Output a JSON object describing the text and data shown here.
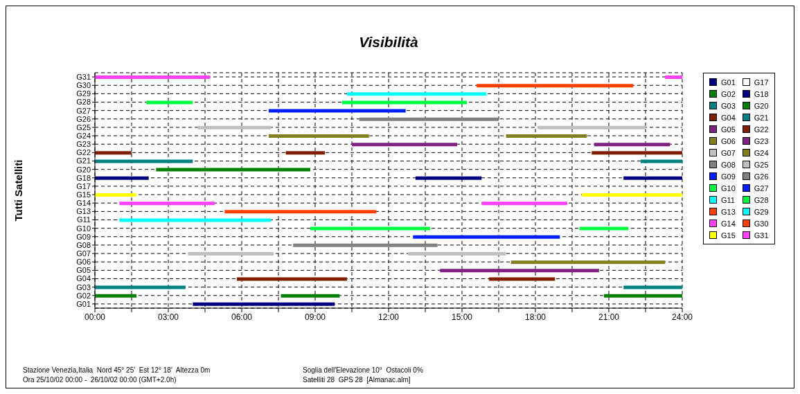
{
  "chart_data": {
    "type": "bar",
    "orientation": "horizontal",
    "title": "Visibilità",
    "ylabel": "Tutti Satelliti",
    "categories": [
      "G31",
      "G30",
      "G29",
      "G28",
      "G27",
      "G26",
      "G25",
      "G24",
      "G23",
      "G22",
      "G21",
      "G20",
      "G18",
      "G17",
      "G15",
      "G14",
      "G13",
      "G11",
      "G10",
      "G09",
      "G08",
      "G07",
      "G06",
      "G05",
      "G04",
      "G03",
      "G02",
      "G01"
    ],
    "series": [
      {
        "name": "G01",
        "color": "#000080",
        "x": [
          "G01"
        ],
        "base": [
          4.0
        ],
        "values": [
          5.8
        ]
      },
      {
        "name": "G02",
        "color": "#008000",
        "x": [
          "G02",
          "G02",
          "G02"
        ],
        "base": [
          0,
          7.6,
          20.8
        ],
        "values": [
          1.7,
          2.4,
          3.2
        ]
      },
      {
        "name": "G03",
        "color": "#008080",
        "x": [
          "G03",
          "G03"
        ],
        "base": [
          0,
          21.6
        ],
        "values": [
          3.7,
          2.4
        ]
      },
      {
        "name": "G04",
        "color": "#802000",
        "x": [
          "G04",
          "G04"
        ],
        "base": [
          5.8,
          16.1
        ],
        "values": [
          4.5,
          2.7
        ]
      },
      {
        "name": "G05",
        "color": "#802080",
        "x": [
          "G05"
        ],
        "base": [
          14.1
        ],
        "values": [
          6.5
        ]
      },
      {
        "name": "G06",
        "color": "#808020",
        "x": [
          "G06"
        ],
        "base": [
          17.0
        ],
        "values": [
          6.3
        ]
      },
      {
        "name": "G07",
        "color": "#c0c0c0",
        "x": [
          "G07",
          "G07"
        ],
        "base": [
          3.8,
          12.8
        ],
        "values": [
          3.5,
          4.0
        ]
      },
      {
        "name": "G08",
        "color": "#808080",
        "x": [
          "G08"
        ],
        "base": [
          8.1
        ],
        "values": [
          5.9
        ]
      },
      {
        "name": "G09",
        "color": "#0020ff",
        "x": [
          "G09"
        ],
        "base": [
          13.0
        ],
        "values": [
          6.0
        ]
      },
      {
        "name": "G10",
        "color": "#00ff40",
        "x": [
          "G10",
          "G10"
        ],
        "base": [
          8.8,
          19.8
        ],
        "values": [
          4.9,
          2.0
        ]
      },
      {
        "name": "G11",
        "color": "#00ffff",
        "x": [
          "G11"
        ],
        "base": [
          1.0
        ],
        "values": [
          6.2
        ]
      },
      {
        "name": "G13",
        "color": "#ff4000",
        "x": [
          "G13"
        ],
        "base": [
          5.3
        ],
        "values": [
          6.2
        ]
      },
      {
        "name": "G14",
        "color": "#ff40ff",
        "x": [
          "G14",
          "G14"
        ],
        "base": [
          1.0,
          15.8
        ],
        "values": [
          3.9,
          3.5
        ]
      },
      {
        "name": "G15",
        "color": "#ffff00",
        "x": [
          "G15",
          "G15"
        ],
        "base": [
          0,
          19.9
        ],
        "values": [
          1.7,
          4.1
        ]
      },
      {
        "name": "G17",
        "color": "#ffffff",
        "x": [
          "G17"
        ],
        "base": [
          null
        ],
        "values": [
          null
        ]
      },
      {
        "name": "G18",
        "color": "#000080",
        "x": [
          "G18",
          "G18",
          "G18"
        ],
        "base": [
          0,
          13.1,
          21.6
        ],
        "values": [
          2.2,
          2.7,
          2.4
        ]
      },
      {
        "name": "G20",
        "color": "#008000",
        "x": [
          "G20"
        ],
        "base": [
          2.5
        ],
        "values": [
          6.3
        ]
      },
      {
        "name": "G21",
        "color": "#008080",
        "x": [
          "G21",
          "G21"
        ],
        "base": [
          0,
          22.3
        ],
        "values": [
          4.0,
          1.7
        ]
      },
      {
        "name": "G22",
        "color": "#802000",
        "x": [
          "G22",
          "G22",
          "G22"
        ],
        "base": [
          0,
          7.8,
          20.3
        ],
        "values": [
          1.5,
          1.6,
          3.7
        ]
      },
      {
        "name": "G23",
        "color": "#802080",
        "x": [
          "G23",
          "G23"
        ],
        "base": [
          10.5,
          20.4
        ],
        "values": [
          4.3,
          3.1
        ]
      },
      {
        "name": "G24",
        "color": "#808020",
        "x": [
          "G24",
          "G24"
        ],
        "base": [
          7.1,
          16.8
        ],
        "values": [
          4.1,
          3.3
        ]
      },
      {
        "name": "G25",
        "color": "#c0c0c0",
        "x": [
          "G25",
          "G25"
        ],
        "base": [
          4.2,
          18.1
        ],
        "values": [
          3.0,
          4.4
        ]
      },
      {
        "name": "G26",
        "color": "#808080",
        "x": [
          "G26"
        ],
        "base": [
          10.8
        ],
        "values": [
          5.7
        ]
      },
      {
        "name": "G27",
        "color": "#0020ff",
        "x": [
          "G27"
        ],
        "base": [
          7.1
        ],
        "values": [
          5.6
        ]
      },
      {
        "name": "G28",
        "color": "#00ff40",
        "x": [
          "G28",
          "G28"
        ],
        "base": [
          2.1,
          10.1
        ],
        "values": [
          1.9,
          5.1
        ]
      },
      {
        "name": "G29",
        "color": "#00ffff",
        "x": [
          "G29"
        ],
        "base": [
          10.3
        ],
        "values": [
          5.7
        ]
      },
      {
        "name": "G30",
        "color": "#ff4000",
        "x": [
          "G30"
        ],
        "base": [
          15.6
        ],
        "values": [
          6.4
        ]
      },
      {
        "name": "G31",
        "color": "#ff40ff",
        "x": [
          "G31",
          "G31"
        ],
        "base": [
          0,
          23.3
        ],
        "values": [
          4.7,
          0.7
        ]
      }
    ],
    "xlim": [
      0,
      24
    ],
    "xticks": [
      {
        "value": 0,
        "label": "00:00"
      },
      {
        "value": 1.5,
        "label": null
      },
      {
        "value": 3,
        "label": "03:00"
      },
      {
        "value": 4.5,
        "label": null
      },
      {
        "value": 6,
        "label": "06:00"
      },
      {
        "value": 7.5,
        "label": null
      },
      {
        "value": 9,
        "label": "09:00"
      },
      {
        "value": 10.5,
        "label": null
      },
      {
        "value": 12,
        "label": "12:00"
      },
      {
        "value": 13.5,
        "label": null
      },
      {
        "value": 15,
        "label": "15:00"
      },
      {
        "value": 16.5,
        "label": null
      },
      {
        "value": 18,
        "label": "18:00"
      },
      {
        "value": 19.5,
        "label": null
      },
      {
        "value": 21,
        "label": "21:00"
      },
      {
        "value": 22.5,
        "label": null
      },
      {
        "value": 24,
        "label": "24:00"
      }
    ],
    "grid": true,
    "legend": "right",
    "annotations": [
      "Stazione Venezia,Italia  Nord 45° 25'  Est 12° 18'  Altezza 0m",
      "Soglia dell'Elevazione 10°  Ostacoli 0%",
      "Ora 25/10/02 00:00 -  26/10/02 00:00 (GMT+2.0h)",
      "Satelliti 28  GPS 28  [Almanac.alm]"
    ]
  }
}
